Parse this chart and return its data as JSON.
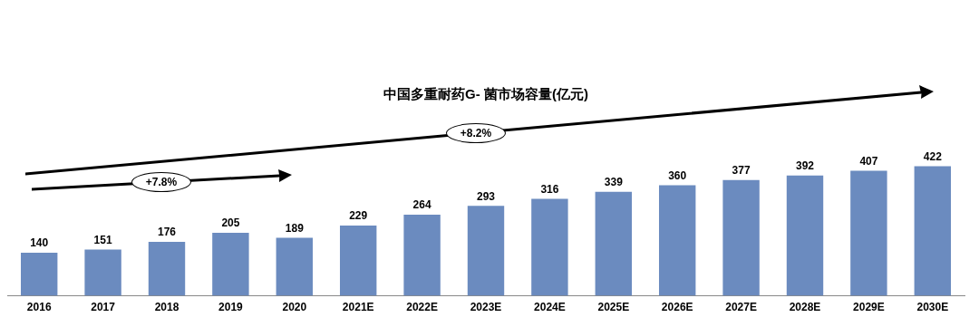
{
  "chart_data": {
    "type": "bar",
    "title": "中国多重耐药G- 菌市场容量(亿元)",
    "categories": [
      "2016",
      "2017",
      "2018",
      "2019",
      "2020",
      "2021E",
      "2022E",
      "2023E",
      "2024E",
      "2025E",
      "2026E",
      "2027E",
      "2028E",
      "2029E",
      "2030E"
    ],
    "values": [
      140,
      151,
      176,
      205,
      189,
      229,
      264,
      293,
      316,
      339,
      360,
      377,
      392,
      407,
      422
    ],
    "color": "#6b8bbf",
    "data_labels": true,
    "legend": false,
    "annotations": [
      "+7.8%",
      "+8.2%"
    ]
  }
}
